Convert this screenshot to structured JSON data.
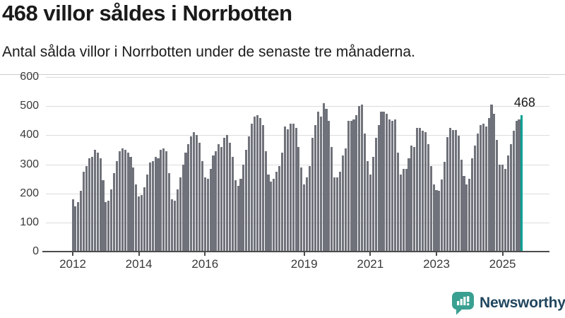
{
  "header": {
    "title": "468 villor såldes i Norrbotten",
    "subtitle": "Antal sålda villor i Norrbotten under de senaste tre månaderna."
  },
  "annotation": {
    "last_value_label": "468"
  },
  "footer": {
    "brand": "Newsworthy",
    "logo_icon": "newsworthy-speech-bubble-bar-chart-icon"
  },
  "colors": {
    "bar_gray": "#6f727a",
    "bar_highlight_teal": "#00a192",
    "gridline": "#dcdcdc",
    "axis": "#4c4c4c",
    "text_dark": "#1a1a1a",
    "axis_label": "#3a3a3a",
    "logo_teal": "#3aa091",
    "brand_navy": "#21465e",
    "divider": "#cfcfcf"
  },
  "chart_data": {
    "type": "bar",
    "title": "468 villor såldes i Norrbotten",
    "subtitle": "Antal sålda villor i Norrbotten under de senaste tre månaderna.",
    "xlabel": "",
    "ylabel": "",
    "ylim": [
      0,
      600
    ],
    "y_ticks": [
      0,
      100,
      200,
      300,
      400,
      500,
      600
    ],
    "grid": true,
    "legend": false,
    "start_month": "2012-01",
    "end_month": "2025-08",
    "x_tick_labels": [
      "2012",
      "2014",
      "2016",
      "2019",
      "2021",
      "2023",
      "2025"
    ],
    "x_tick_month_index": [
      0,
      24,
      48,
      84,
      108,
      132,
      156
    ],
    "series_name": "Antal sålda villor (rullande tre månader)",
    "highlight_last": true,
    "highlight_value": 468,
    "values": [
      180,
      155,
      170,
      210,
      275,
      295,
      320,
      325,
      350,
      340,
      320,
      245,
      170,
      175,
      215,
      270,
      310,
      345,
      355,
      350,
      340,
      325,
      290,
      230,
      190,
      195,
      220,
      265,
      305,
      310,
      325,
      320,
      350,
      355,
      345,
      270,
      180,
      175,
      215,
      255,
      300,
      340,
      370,
      395,
      410,
      400,
      375,
      310,
      255,
      250,
      285,
      330,
      345,
      370,
      360,
      390,
      400,
      375,
      325,
      245,
      225,
      250,
      300,
      350,
      395,
      440,
      465,
      470,
      460,
      435,
      345,
      265,
      240,
      250,
      275,
      295,
      340,
      430,
      420,
      440,
      440,
      425,
      360,
      290,
      230,
      255,
      295,
      390,
      435,
      480,
      465,
      510,
      490,
      450,
      360,
      255,
      255,
      275,
      330,
      355,
      450,
      450,
      455,
      470,
      500,
      505,
      405,
      310,
      265,
      325,
      390,
      435,
      480,
      480,
      475,
      455,
      450,
      455,
      340,
      265,
      285,
      285,
      320,
      365,
      360,
      425,
      425,
      415,
      410,
      370,
      295,
      230,
      212,
      210,
      247,
      308,
      393,
      425,
      417,
      418,
      399,
      316,
      259,
      231,
      250,
      320,
      365,
      405,
      435,
      440,
      430,
      460,
      505,
      475,
      385,
      300,
      300,
      285,
      330,
      370,
      415,
      450,
      455,
      468
    ]
  }
}
